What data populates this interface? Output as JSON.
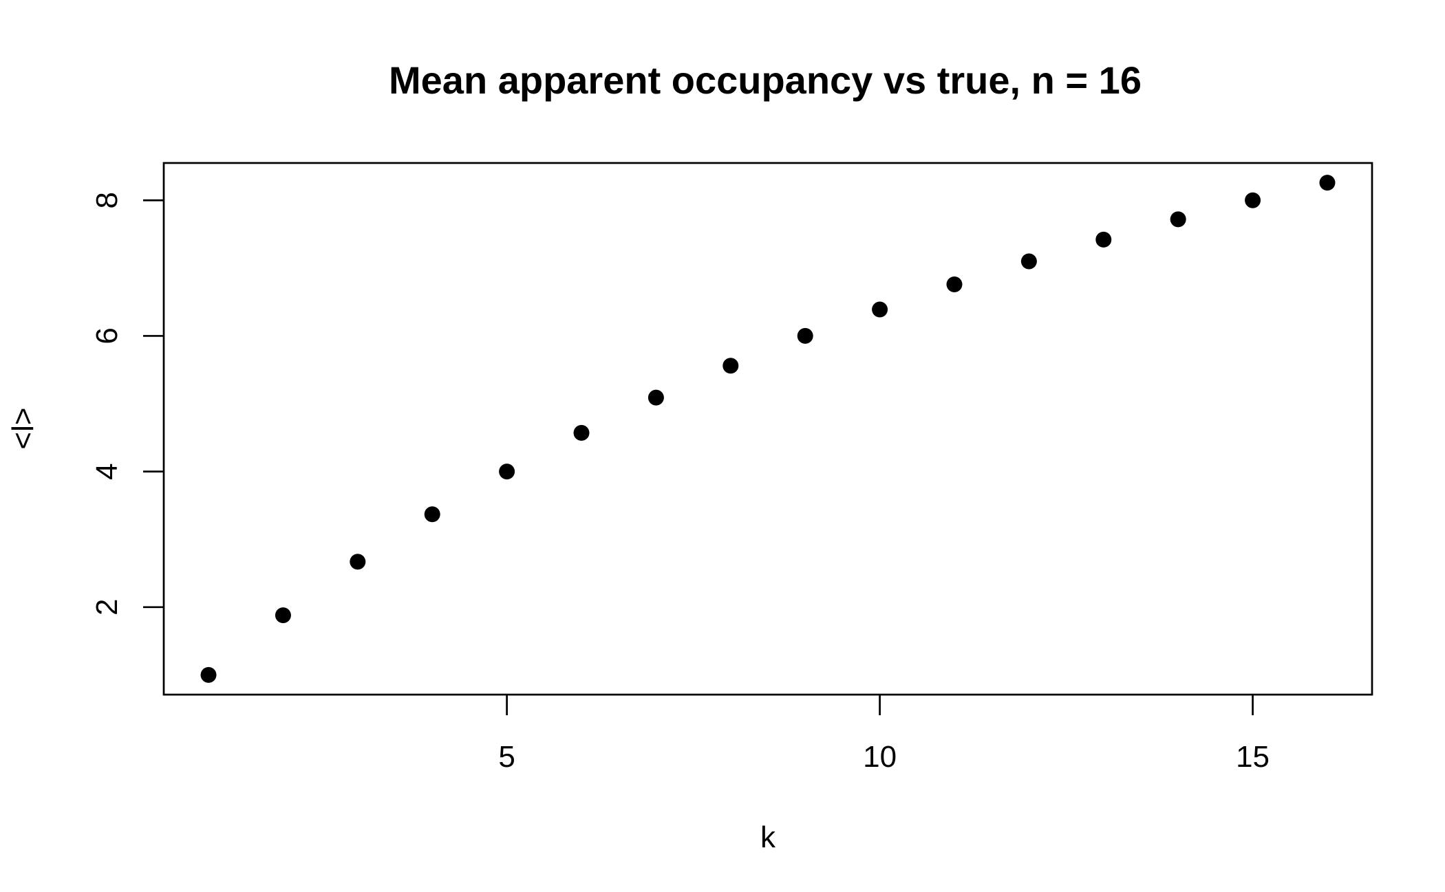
{
  "chart_data": {
    "type": "scatter",
    "title": "Mean apparent occupancy vs true, n = 16",
    "xlabel": "k",
    "ylabel": "<l>",
    "x": [
      1,
      2,
      3,
      4,
      5,
      6,
      7,
      8,
      9,
      10,
      11,
      12,
      13,
      14,
      15,
      16
    ],
    "y": [
      1.0,
      1.88,
      2.67,
      3.37,
      4.0,
      4.57,
      5.09,
      5.56,
      6.0,
      6.39,
      6.76,
      7.1,
      7.42,
      7.72,
      8.0,
      8.26
    ],
    "xlim": [
      0.4,
      16.6
    ],
    "ylim": [
      0.71,
      8.55
    ],
    "xticks": [
      5,
      10,
      15
    ],
    "yticks": [
      2,
      4,
      6,
      8
    ],
    "grid": false,
    "legend": "none",
    "colors": {
      "points": "#000000",
      "axes": "#000000",
      "background": "#ffffff"
    }
  }
}
